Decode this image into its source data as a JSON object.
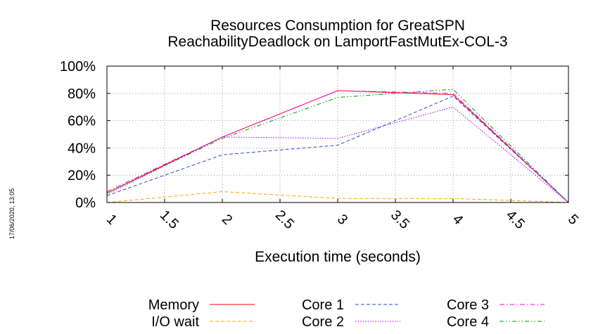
{
  "chart_data": {
    "type": "line",
    "title": "Resources Consumption for GreatSPN",
    "subtitle": "ReachabilityDeadlock on LamportFastMutEx-COL-3",
    "xlabel": "Execution time (seconds)",
    "ylabel": "",
    "xlim": [
      1,
      5
    ],
    "ylim": [
      0,
      100
    ],
    "x_ticks": [
      "1",
      "1.5",
      "2",
      "2.5",
      "3",
      "3.5",
      "4",
      "4.5",
      "5"
    ],
    "y_ticks": [
      "0%",
      "20%",
      "40%",
      "60%",
      "80%",
      "100%"
    ],
    "grid": true,
    "legend_position": "bottom",
    "series": [
      {
        "name": "Memory",
        "color": "#ff0000",
        "dash": "solid",
        "x": [
          1,
          2,
          3,
          4,
          5
        ],
        "values": [
          7,
          48,
          82,
          79,
          0
        ]
      },
      {
        "name": "I/O wait",
        "color": "#ffa500",
        "dash": "dashed",
        "x": [
          1,
          2,
          3,
          4,
          5
        ],
        "values": [
          0,
          8,
          3,
          3,
          0
        ]
      },
      {
        "name": "Core 1",
        "color": "#3050c0",
        "dash": "dashed",
        "x": [
          1,
          2,
          3,
          4,
          5
        ],
        "values": [
          5,
          35,
          42,
          78,
          0
        ]
      },
      {
        "name": "Core 2",
        "color": "#9400d3",
        "dash": "dotted",
        "x": [
          1,
          2,
          3,
          4,
          5
        ],
        "values": [
          6,
          48,
          47,
          70,
          0
        ]
      },
      {
        "name": "Core 3",
        "color": "#ff00ff",
        "dash": "dashdot",
        "x": [
          1,
          2,
          3,
          4,
          5
        ],
        "values": [
          8,
          48,
          82,
          80,
          0
        ]
      },
      {
        "name": "Core 4",
        "color": "#009900",
        "dash": "dashdotdot",
        "x": [
          1,
          2,
          3,
          4,
          5
        ],
        "values": [
          7,
          47,
          77,
          83,
          0
        ]
      }
    ]
  },
  "timestamp": "17/06/2020, 13:05"
}
